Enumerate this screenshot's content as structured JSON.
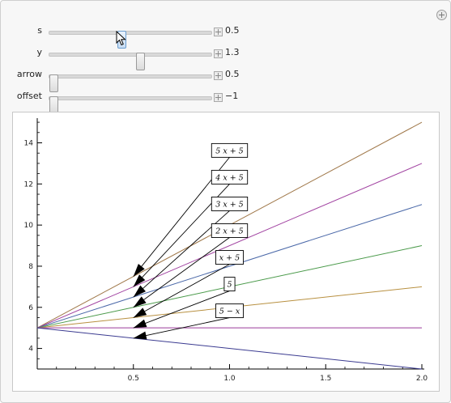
{
  "controls": [
    {
      "label": "s",
      "value": "0.5",
      "fraction": 0.44,
      "active": true
    },
    {
      "label": "y",
      "value": "1.3",
      "fraction": 0.56,
      "active": false
    },
    {
      "label": "arrow",
      "value": "0.5",
      "fraction": 0.0,
      "active": false
    },
    {
      "label": "offset",
      "value": "−1",
      "fraction": 0.0,
      "active": false
    }
  ],
  "icons": {
    "corner": "add-circle-icon",
    "cursor": "pointer-cursor-icon",
    "row_expand": "plus-box-icon"
  },
  "chart_data": {
    "type": "line",
    "xlim": [
      0,
      2
    ],
    "ylim": [
      3,
      15.2
    ],
    "xticks": [
      0.5,
      1.0,
      1.5,
      2.0
    ],
    "xtick_labels": [
      "0.5",
      "1.0",
      "1.5",
      "2.0"
    ],
    "yticks": [
      4,
      6,
      8,
      10,
      12,
      14
    ],
    "ytick_labels": [
      "4",
      "6",
      "8",
      "10",
      "12",
      "14"
    ],
    "grid": false,
    "series": [
      {
        "slope": 5,
        "intercept": 5,
        "color": "#a0784a"
      },
      {
        "slope": 4,
        "intercept": 5,
        "color": "#a040a0"
      },
      {
        "slope": 3,
        "intercept": 5,
        "color": "#4a68a8"
      },
      {
        "slope": 2,
        "intercept": 5,
        "color": "#4a9a4a"
      },
      {
        "slope": 1,
        "intercept": 5,
        "color": "#b89040"
      },
      {
        "slope": 0,
        "intercept": 5,
        "color": "#9a3a9a"
      },
      {
        "slope": -1,
        "intercept": 5,
        "color": "#3a3a90"
      }
    ],
    "annotations": [
      {
        "text": "5 x + 5",
        "lx": 1.0,
        "ly": 13.65,
        "ax": 0.5,
        "ay": 7.5
      },
      {
        "text": "4 x + 5",
        "lx": 1.0,
        "ly": 12.35,
        "ax": 0.5,
        "ay": 7.0
      },
      {
        "text": "3 x + 5",
        "lx": 1.0,
        "ly": 11.05,
        "ax": 0.5,
        "ay": 6.5
      },
      {
        "text": "2 x + 5",
        "lx": 1.0,
        "ly": 9.75,
        "ax": 0.5,
        "ay": 6.0
      },
      {
        "text": "x + 5",
        "lx": 1.0,
        "ly": 8.45,
        "ax": 0.5,
        "ay": 5.5
      },
      {
        "text": "5",
        "lx": 1.0,
        "ly": 7.15,
        "ax": 0.5,
        "ay": 5.0
      },
      {
        "text": "5 − x",
        "lx": 1.0,
        "ly": 5.85,
        "ax": 0.5,
        "ay": 4.5
      }
    ]
  }
}
